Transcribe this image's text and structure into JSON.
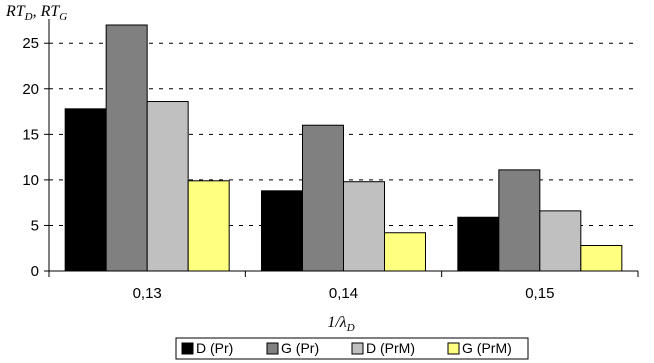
{
  "chart_data": {
    "type": "bar",
    "title": "",
    "ylabel": "RT_D, RT_G",
    "xlabel": "1/λ_D",
    "categories": [
      "0,13",
      "0,14",
      "0,15"
    ],
    "ylim": [
      0,
      27
    ],
    "yticks": [
      0,
      5,
      10,
      15,
      20,
      25
    ],
    "grid": "horizontal dashed",
    "legend": "bottom",
    "series": [
      {
        "name": "D (Pr)",
        "color": "#000000",
        "values": [
          17.8,
          8.8,
          5.9
        ]
      },
      {
        "name": "G (Pr)",
        "color": "#808080",
        "values": [
          27,
          16,
          11.1
        ]
      },
      {
        "name": "D (PrM)",
        "color": "#c0c0c0",
        "values": [
          18.6,
          9.8,
          6.6
        ]
      },
      {
        "name": "G (PrM)",
        "color": "#ffff80",
        "values": [
          9.9,
          4.2,
          2.8
        ]
      }
    ]
  }
}
